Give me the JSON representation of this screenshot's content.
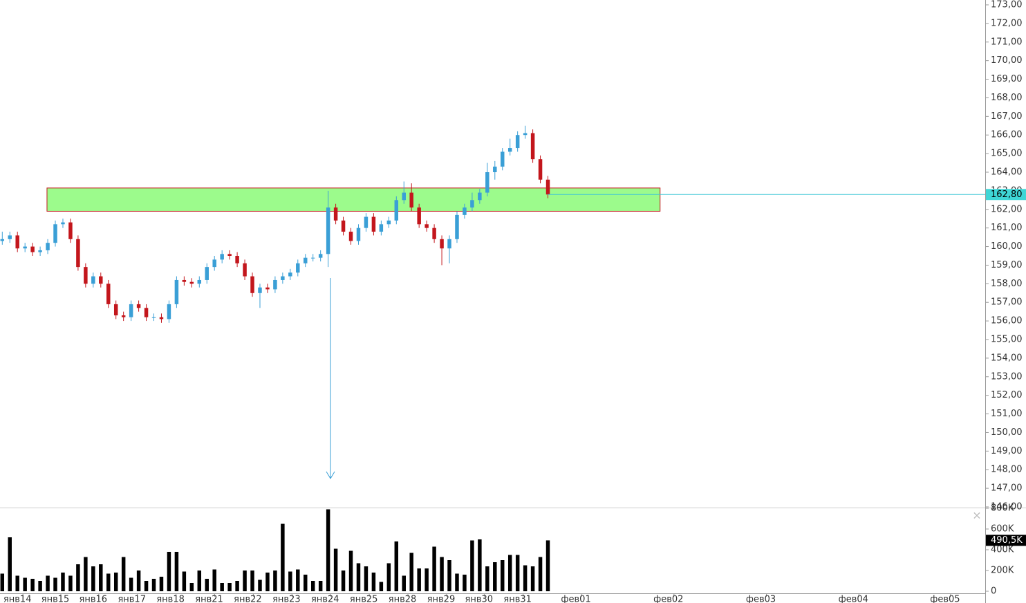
{
  "chart_data": {
    "type": "candlestick",
    "x": [
      0,
      1,
      2,
      3,
      4,
      5,
      6,
      7,
      8,
      9,
      10,
      11,
      12,
      13,
      14,
      15,
      16,
      17,
      18,
      19,
      20,
      21,
      22,
      23,
      24,
      25,
      26,
      27,
      28,
      29,
      30,
      31,
      32,
      33,
      34,
      35,
      36,
      37,
      38,
      39,
      40,
      41,
      42,
      43,
      44,
      45,
      46,
      47,
      48,
      49,
      50,
      51,
      52,
      53,
      54,
      55,
      56,
      57,
      58,
      59,
      60,
      61,
      62,
      63,
      64,
      65,
      66,
      67,
      68,
      69,
      70,
      71,
      72
    ],
    "ohlc": [
      [
        160.3,
        160.8,
        160.1,
        160.4
      ],
      [
        160.4,
        160.8,
        160.2,
        160.6
      ],
      [
        160.6,
        160.8,
        159.7,
        159.9
      ],
      [
        159.9,
        160.2,
        159.7,
        160.0
      ],
      [
        160.0,
        160.2,
        159.5,
        159.7
      ],
      [
        159.7,
        160.0,
        159.5,
        159.8
      ],
      [
        159.8,
        160.4,
        159.6,
        160.2
      ],
      [
        160.2,
        161.4,
        160.0,
        161.2
      ],
      [
        161.2,
        161.5,
        161.0,
        161.3
      ],
      [
        161.3,
        161.5,
        160.2,
        160.4
      ],
      [
        160.4,
        160.6,
        158.7,
        158.9
      ],
      [
        158.9,
        159.1,
        157.8,
        158.0
      ],
      [
        158.0,
        158.6,
        157.8,
        158.4
      ],
      [
        158.4,
        158.6,
        157.8,
        158.0
      ],
      [
        158.0,
        158.2,
        156.7,
        156.9
      ],
      [
        156.9,
        157.1,
        156.1,
        156.3
      ],
      [
        156.3,
        156.5,
        156.0,
        156.2
      ],
      [
        156.2,
        157.1,
        156.0,
        156.9
      ],
      [
        156.9,
        157.1,
        156.5,
        156.7
      ],
      [
        156.7,
        156.9,
        156.0,
        156.2
      ],
      [
        156.2,
        156.4,
        156.0,
        156.2
      ],
      [
        156.2,
        156.4,
        155.9,
        156.1
      ],
      [
        156.1,
        157.1,
        155.9,
        156.9
      ],
      [
        156.9,
        158.4,
        156.7,
        158.2
      ],
      [
        158.2,
        158.4,
        157.9,
        158.1
      ],
      [
        158.1,
        158.3,
        157.8,
        158.0
      ],
      [
        158.0,
        158.4,
        157.8,
        158.2
      ],
      [
        158.2,
        159.1,
        158.0,
        158.9
      ],
      [
        158.9,
        159.5,
        158.7,
        159.3
      ],
      [
        159.3,
        159.8,
        159.1,
        159.6
      ],
      [
        159.6,
        159.8,
        159.3,
        159.5
      ],
      [
        159.5,
        159.7,
        158.9,
        159.1
      ],
      [
        159.1,
        159.3,
        158.2,
        158.4
      ],
      [
        158.4,
        158.6,
        157.3,
        157.5
      ],
      [
        157.5,
        158.0,
        156.7,
        157.8
      ],
      [
        157.8,
        158.0,
        157.5,
        157.7
      ],
      [
        157.7,
        158.4,
        157.5,
        158.2
      ],
      [
        158.2,
        158.6,
        158.0,
        158.4
      ],
      [
        158.4,
        158.8,
        158.2,
        158.6
      ],
      [
        158.6,
        159.3,
        158.4,
        159.1
      ],
      [
        159.1,
        159.6,
        158.9,
        159.4
      ],
      [
        159.4,
        159.6,
        159.2,
        159.4
      ],
      [
        159.4,
        159.8,
        159.2,
        159.6
      ],
      [
        159.6,
        163.0,
        158.9,
        162.1
      ],
      [
        162.1,
        162.3,
        161.2,
        161.4
      ],
      [
        161.4,
        161.6,
        160.6,
        160.8
      ],
      [
        160.8,
        161.0,
        160.1,
        160.3
      ],
      [
        160.3,
        161.2,
        160.1,
        161.0
      ],
      [
        161.0,
        161.8,
        160.8,
        161.6
      ],
      [
        161.6,
        161.8,
        160.6,
        160.8
      ],
      [
        160.8,
        161.4,
        160.6,
        161.2
      ],
      [
        161.2,
        161.6,
        161.0,
        161.4
      ],
      [
        161.4,
        162.7,
        161.2,
        162.5
      ],
      [
        162.5,
        163.5,
        162.3,
        162.9
      ],
      [
        162.9,
        163.4,
        161.9,
        162.1
      ],
      [
        162.1,
        162.3,
        161.0,
        161.2
      ],
      [
        161.2,
        161.4,
        160.8,
        161.0
      ],
      [
        161.0,
        161.2,
        160.2,
        160.4
      ],
      [
        160.4,
        160.6,
        159.0,
        159.9
      ],
      [
        159.9,
        160.6,
        159.1,
        160.4
      ],
      [
        160.4,
        161.9,
        160.2,
        161.7
      ],
      [
        161.7,
        162.3,
        161.5,
        162.1
      ],
      [
        162.1,
        162.9,
        161.9,
        162.5
      ],
      [
        162.5,
        163.1,
        162.3,
        162.9
      ],
      [
        162.9,
        164.5,
        162.7,
        164.0
      ],
      [
        164.0,
        164.6,
        163.6,
        164.3
      ],
      [
        164.3,
        165.3,
        164.1,
        165.1
      ],
      [
        165.1,
        165.8,
        164.9,
        165.3
      ],
      [
        165.3,
        166.2,
        165.1,
        166.0
      ],
      [
        166.0,
        166.5,
        165.8,
        166.1
      ],
      [
        166.1,
        166.3,
        164.5,
        164.7
      ],
      [
        164.7,
        164.9,
        163.4,
        163.6
      ],
      [
        163.6,
        163.8,
        162.6,
        162.8
      ]
    ],
    "volume": [
      170000,
      520000,
      150000,
      130000,
      120000,
      100000,
      150000,
      130000,
      180000,
      150000,
      260000,
      330000,
      240000,
      260000,
      170000,
      180000,
      330000,
      130000,
      200000,
      100000,
      120000,
      140000,
      380000,
      380000,
      190000,
      80000,
      200000,
      120000,
      210000,
      80000,
      80000,
      100000,
      200000,
      200000,
      110000,
      180000,
      200000,
      650000,
      190000,
      210000,
      160000,
      100000,
      100000,
      790000,
      410000,
      200000,
      390000,
      270000,
      240000,
      180000,
      90000,
      270000,
      480000,
      150000,
      370000,
      220000,
      220000,
      430000,
      330000,
      300000,
      170000,
      160000,
      490000,
      500000,
      240000,
      280000,
      300000,
      350000,
      350000,
      250000,
      240000,
      330000,
      490500
    ],
    "up_color": "#3a9fd6",
    "down_color": "#c3161c",
    "volume_color": "#000000",
    "xlim": [
      -0.3,
      129.7
    ],
    "xticks": [
      {
        "value": 2,
        "label": "янв14"
      },
      {
        "value": 7,
        "label": "янв15"
      },
      {
        "value": 12,
        "label": "янв16"
      },
      {
        "value": 17.1,
        "label": "янв17"
      },
      {
        "value": 22.2,
        "label": "янв18"
      },
      {
        "value": 27.3,
        "label": "янв21"
      },
      {
        "value": 32.4,
        "label": "янв22"
      },
      {
        "value": 37.5,
        "label": "янв23"
      },
      {
        "value": 42.6,
        "label": "янв24"
      },
      {
        "value": 47.7,
        "label": "янв25"
      },
      {
        "value": 52.8,
        "label": "янв28"
      },
      {
        "value": 57.9,
        "label": "янв29"
      },
      {
        "value": 62.9,
        "label": "янв30"
      },
      {
        "value": 68,
        "label": "янв31"
      },
      {
        "value": 75.7,
        "label": "фев01"
      },
      {
        "value": 87.9,
        "label": "фев02"
      },
      {
        "value": 100.1,
        "label": "фев03"
      },
      {
        "value": 112.3,
        "label": "фев04"
      },
      {
        "value": 124.4,
        "label": "фев05"
      }
    ],
    "ylim": [
      146,
      173
    ],
    "yticks": [
      {
        "value": 146,
        "label": "146,00"
      },
      {
        "value": 147,
        "label": "147,00"
      },
      {
        "value": 148,
        "label": "148,00"
      },
      {
        "value": 149,
        "label": "149,00"
      },
      {
        "value": 150,
        "label": "150,00"
      },
      {
        "value": 151,
        "label": "151,00"
      },
      {
        "value": 152,
        "label": "152,00"
      },
      {
        "value": 153,
        "label": "153,00"
      },
      {
        "value": 154,
        "label": "154,00"
      },
      {
        "value": 155,
        "label": "155,00"
      },
      {
        "value": 156,
        "label": "156,00"
      },
      {
        "value": 157,
        "label": "157,00"
      },
      {
        "value": 158,
        "label": "158,00"
      },
      {
        "value": 159,
        "label": "159,00"
      },
      {
        "value": 160,
        "label": "160,00"
      },
      {
        "value": 161,
        "label": "161,00"
      },
      {
        "value": 162,
        "label": "162,00"
      },
      {
        "value": 163,
        "label": "163,00"
      },
      {
        "value": 164,
        "label": "164,00"
      },
      {
        "value": 165,
        "label": "165,00"
      },
      {
        "value": 166,
        "label": "166,00"
      },
      {
        "value": 167,
        "label": "167,00"
      },
      {
        "value": 168,
        "label": "168,00"
      },
      {
        "value": 169,
        "label": "169,00"
      },
      {
        "value": 170,
        "label": "170,00"
      },
      {
        "value": 171,
        "label": "171,00"
      },
      {
        "value": 172,
        "label": "172,00"
      },
      {
        "value": 173,
        "label": "173,00"
      }
    ],
    "vlim": [
      0,
      800000
    ],
    "vticks": [
      0,
      {
        "value": 200000,
        "label": "200K"
      },
      {
        "value": 400000,
        "label": "400K"
      },
      {
        "value": 600000,
        "label": "600K"
      },
      {
        "value": 800000,
        "label": "800K"
      }
    ],
    "zone": [
      161.9,
      163.15
    ],
    "zone_x": [
      5.9,
      86.8
    ],
    "zone_color": "#9cfb8c",
    "last_price": {
      "value": 162.8,
      "label": "162,80"
    },
    "last_volume": {
      "value": 490500,
      "label": "490,5K"
    }
  }
}
